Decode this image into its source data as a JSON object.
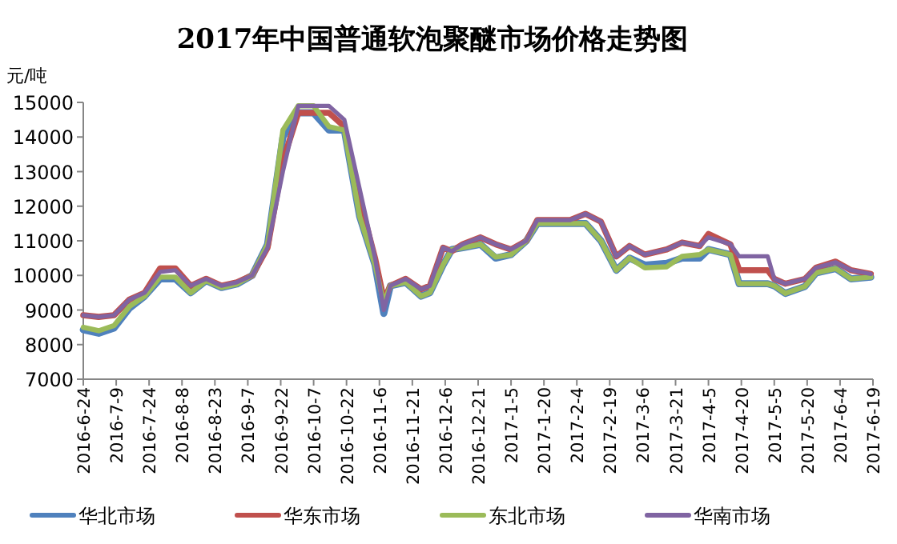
{
  "chart_data": {
    "type": "line",
    "title": "2017年中国普通软泡聚醚市场价格走势图",
    "ylabel": "元/吨",
    "x": [
      "2016-06-24",
      "2016-07-01",
      "2016-07-08",
      "2016-07-15",
      "2016-07-22",
      "2016-07-29",
      "2016-08-05",
      "2016-08-12",
      "2016-08-19",
      "2016-08-26",
      "2016-09-02",
      "2016-09-09",
      "2016-09-16",
      "2016-09-23",
      "2016-09-30",
      "2016-10-07",
      "2016-10-14",
      "2016-10-21",
      "2016-10-28",
      "2016-11-04",
      "2016-11-08",
      "2016-11-11",
      "2016-11-18",
      "2016-11-25",
      "2016-11-29",
      "2016-12-05",
      "2016-12-09",
      "2016-12-14",
      "2016-12-22",
      "2016-12-29",
      "2017-01-05",
      "2017-01-12",
      "2017-01-17",
      "2017-02-01",
      "2017-02-08",
      "2017-02-15",
      "2017-02-22",
      "2017-02-28",
      "2017-03-07",
      "2017-03-17",
      "2017-03-24",
      "2017-04-01",
      "2017-04-05",
      "2017-04-15",
      "2017-04-19",
      "2017-05-02",
      "2017-05-05",
      "2017-05-10",
      "2017-05-19",
      "2017-05-24",
      "2017-06-02",
      "2017-06-09",
      "2017-06-18"
    ],
    "series": [
      {
        "name": "华北市场",
        "color": "#4f81bd",
        "values": [
          8430,
          8330,
          8480,
          9050,
          9400,
          9900,
          9900,
          9500,
          9850,
          9650,
          9750,
          10000,
          10900,
          14000,
          14700,
          14700,
          14200,
          14200,
          11700,
          10300,
          8900,
          9700,
          9800,
          9400,
          9500,
          10300,
          10750,
          10800,
          10900,
          10500,
          10600,
          11000,
          11500,
          11500,
          11500,
          11000,
          10150,
          10500,
          10300,
          10350,
          10500,
          10500,
          10750,
          10600,
          9760,
          9760,
          9700,
          9480,
          9680,
          10070,
          10200,
          9900,
          9950
        ]
      },
      {
        "name": "华东市场",
        "color": "#c0504d",
        "values": [
          8850,
          8800,
          8850,
          9300,
          9500,
          10200,
          10200,
          9700,
          9900,
          9700,
          9800,
          10000,
          10800,
          13300,
          14700,
          14700,
          14700,
          14300,
          12200,
          10500,
          9300,
          9700,
          9900,
          9600,
          9700,
          10800,
          10700,
          10900,
          11100,
          10900,
          10750,
          11000,
          11600,
          11600,
          11780,
          11550,
          10550,
          10850,
          10600,
          10750,
          10950,
          10850,
          11200,
          10900,
          10150,
          10150,
          9900,
          9760,
          9900,
          10220,
          10400,
          10150,
          10040
        ]
      },
      {
        "name": "东北市场",
        "color": "#9bbb59",
        "values": [
          8500,
          8400,
          8550,
          9100,
          9400,
          9950,
          9950,
          9500,
          9850,
          9650,
          9750,
          10000,
          10900,
          14200,
          14900,
          14900,
          14300,
          14200,
          11700,
          10300,
          9200,
          9700,
          9800,
          9400,
          9500,
          10300,
          10750,
          10800,
          10900,
          10530,
          10600,
          11000,
          11500,
          11500,
          11500,
          11000,
          10150,
          10500,
          10220,
          10250,
          10550,
          10600,
          10750,
          10600,
          9760,
          9760,
          9700,
          9480,
          9680,
          10070,
          10200,
          9900,
          9950
        ]
      },
      {
        "name": "华南市场",
        "color": "#8064a2",
        "values": [
          8850,
          8800,
          8850,
          9300,
          9500,
          10100,
          10150,
          9700,
          9900,
          9700,
          9800,
          10000,
          10800,
          13000,
          14900,
          14900,
          14900,
          14500,
          12500,
          10500,
          9000,
          9700,
          9900,
          9600,
          9700,
          10800,
          10700,
          10900,
          11100,
          10900,
          10750,
          11000,
          11600,
          11600,
          11780,
          11550,
          10550,
          10850,
          10600,
          10750,
          10950,
          10850,
          11100,
          10900,
          10550,
          10550,
          9900,
          9760,
          9900,
          10220,
          10380,
          10150,
          10040
        ]
      }
    ],
    "xlim": [
      "2016-06-24",
      "2017-06-19"
    ],
    "xticks": [
      {
        "value": "2016-06-24",
        "label": "2016-6-24"
      },
      {
        "value": "2016-07-09",
        "label": "2016-7-9"
      },
      {
        "value": "2016-07-24",
        "label": "2016-7-24"
      },
      {
        "value": "2016-08-08",
        "label": "2016-8-8"
      },
      {
        "value": "2016-08-23",
        "label": "2016-8-23"
      },
      {
        "value": "2016-09-07",
        "label": "2016-9-7"
      },
      {
        "value": "2016-09-22",
        "label": "2016-9-22"
      },
      {
        "value": "2016-10-07",
        "label": "2016-10-7"
      },
      {
        "value": "2016-10-22",
        "label": "2016-10-22"
      },
      {
        "value": "2016-11-06",
        "label": "2016-11-6"
      },
      {
        "value": "2016-11-21",
        "label": "2016-11-21"
      },
      {
        "value": "2016-12-06",
        "label": "2016-12-6"
      },
      {
        "value": "2016-12-21",
        "label": "2016-12-21"
      },
      {
        "value": "2017-01-05",
        "label": "2017-1-5"
      },
      {
        "value": "2017-01-20",
        "label": "2017-1-20"
      },
      {
        "value": "2017-02-04",
        "label": "2017-2-4"
      },
      {
        "value": "2017-02-19",
        "label": "2017-2-19"
      },
      {
        "value": "2017-03-06",
        "label": "2017-3-6"
      },
      {
        "value": "2017-03-21",
        "label": "2017-3-21"
      },
      {
        "value": "2017-04-05",
        "label": "2017-4-5"
      },
      {
        "value": "2017-04-20",
        "label": "2017-4-20"
      },
      {
        "value": "2017-05-05",
        "label": "2017-5-5"
      },
      {
        "value": "2017-05-20",
        "label": "2017-5-20"
      },
      {
        "value": "2017-06-04",
        "label": "2017-6-4"
      },
      {
        "value": "2017-06-19",
        "label": "2017-6-19"
      }
    ],
    "ylim": [
      7000,
      15000
    ],
    "yticks": [
      7000,
      8000,
      9000,
      10000,
      11000,
      12000,
      13000,
      14000,
      15000
    ],
    "grid": false,
    "legend": "bottom",
    "marker": "none",
    "line_style": "solid"
  }
}
